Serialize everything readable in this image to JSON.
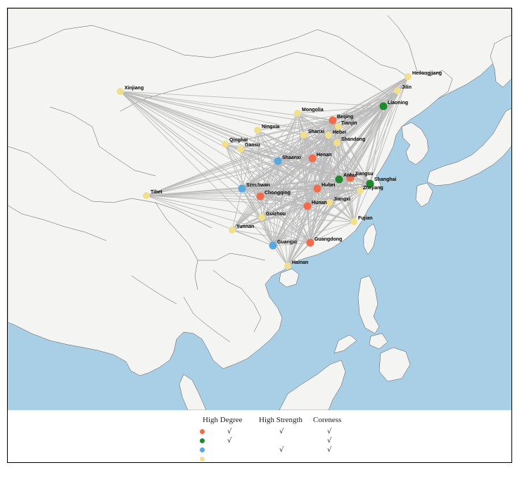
{
  "colors": {
    "sea": "#a9cfe6",
    "land": "#f4f4f2",
    "border": "#555555",
    "edge": "#bbbbbb",
    "high_degree": "#f26b4d",
    "high_strength": "#1d8a2e",
    "coreness_only": "#5aa8e0",
    "other": "#f0e08e"
  },
  "legend": {
    "headers": [
      "High Degree",
      "High Strength",
      "Coreness"
    ],
    "check_symbol": "√",
    "rows": [
      {
        "color_key": "high_degree",
        "checks": [
          true,
          true,
          true
        ]
      },
      {
        "color_key": "high_strength",
        "checks": [
          true,
          false,
          true
        ]
      },
      {
        "color_key": "coreness_only",
        "checks": [
          false,
          true,
          true
        ]
      },
      {
        "color_key": "other",
        "checks": [
          false,
          false,
          false
        ]
      }
    ]
  },
  "provinces": [
    {
      "name": "Xinjiang",
      "group": "other"
    },
    {
      "name": "Tibet",
      "group": "other"
    },
    {
      "name": "Qinghai",
      "group": "other"
    },
    {
      "name": "Gansu",
      "group": "other"
    },
    {
      "name": "Ningxia",
      "group": "other"
    },
    {
      "name": "Mongolia",
      "group": "other"
    },
    {
      "name": "Heilongjiang",
      "group": "other"
    },
    {
      "name": "Jilin",
      "group": "other"
    },
    {
      "name": "Liaoning",
      "group": "high_strength"
    },
    {
      "name": "Beijing",
      "group": "high_degree"
    },
    {
      "name": "Tianjin",
      "group": "other"
    },
    {
      "name": "Hebei",
      "group": "other"
    },
    {
      "name": "Shanxi",
      "group": "other"
    },
    {
      "name": "Shandong",
      "group": "other"
    },
    {
      "name": "Henan",
      "group": "high_degree"
    },
    {
      "name": "Shaanxi",
      "group": "coreness_only"
    },
    {
      "name": "Szechwan",
      "group": "coreness_only"
    },
    {
      "name": "Chongqing",
      "group": "high_degree"
    },
    {
      "name": "Hubei",
      "group": "high_degree"
    },
    {
      "name": "Anhui",
      "group": "high_strength"
    },
    {
      "name": "Jiangsu",
      "group": "high_degree"
    },
    {
      "name": "Shanghai",
      "group": "high_strength"
    },
    {
      "name": "Zhejiang",
      "group": "other"
    },
    {
      "name": "Jiangxi",
      "group": "other"
    },
    {
      "name": "Hunan",
      "group": "high_degree"
    },
    {
      "name": "Guizhou",
      "group": "other"
    },
    {
      "name": "Yunnan",
      "group": "other"
    },
    {
      "name": "Guangxi",
      "group": "coreness_only"
    },
    {
      "name": "Guangdong",
      "group": "high_degree"
    },
    {
      "name": "Fujian",
      "group": "other"
    },
    {
      "name": "Hainan",
      "group": "other"
    }
  ]
}
